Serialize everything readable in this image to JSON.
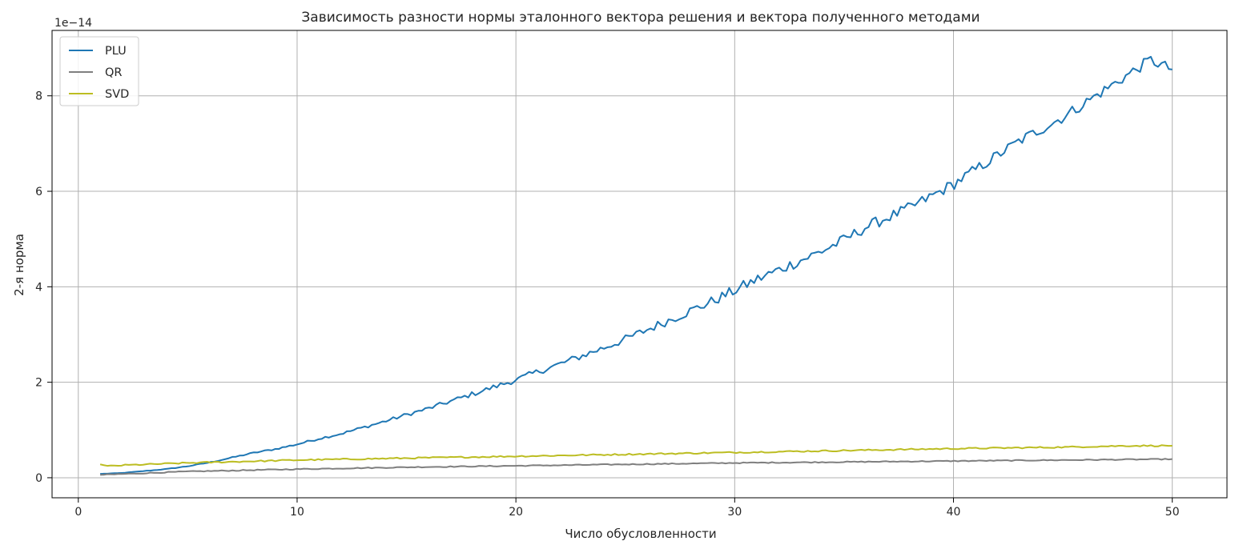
{
  "chart_data": {
    "type": "line",
    "title": "Зависимость разности нормы эталонного вектора решения и вектора полученного методами",
    "xlabel": "Число обусловленности",
    "ylabel": "2-я норма",
    "y_multiplier_label": "1e−14",
    "xlim": [
      -1.2,
      52.5
    ],
    "ylim": [
      -0.42,
      9.37
    ],
    "x_ticks": [
      0,
      10,
      20,
      30,
      40,
      50
    ],
    "x_tick_labels": [
      "0",
      "10",
      "20",
      "30",
      "40",
      "50"
    ],
    "y_ticks": [
      0,
      2,
      4,
      6,
      8
    ],
    "y_tick_labels": [
      "0",
      "2",
      "4",
      "6",
      "8"
    ],
    "grid": true,
    "legend_position": "top-left",
    "x_range": [
      1,
      50
    ],
    "series": [
      {
        "name": "PLU",
        "color": "#1f77b4",
        "x": [
          1,
          2,
          3,
          4,
          5,
          6,
          7,
          8,
          9,
          10,
          11,
          12,
          13,
          14,
          15,
          16,
          17,
          18,
          19,
          20,
          21,
          22,
          23,
          24,
          25,
          26,
          27,
          28,
          29,
          30,
          31,
          32,
          33,
          34,
          35,
          36,
          37,
          38,
          39,
          40,
          41,
          42,
          43,
          44,
          45,
          46,
          47,
          48,
          49,
          50
        ],
        "values": [
          0.08,
          0.1,
          0.14,
          0.18,
          0.24,
          0.32,
          0.42,
          0.52,
          0.6,
          0.7,
          0.82,
          0.92,
          1.05,
          1.18,
          1.32,
          1.45,
          1.6,
          1.75,
          1.9,
          2.05,
          2.22,
          2.38,
          2.55,
          2.72,
          2.9,
          3.1,
          3.3,
          3.5,
          3.7,
          3.92,
          4.15,
          4.35,
          4.55,
          4.75,
          4.98,
          5.25,
          5.45,
          5.65,
          5.9,
          6.15,
          6.45,
          6.75,
          7.05,
          7.3,
          7.55,
          7.85,
          8.15,
          8.45,
          8.75,
          8.55
        ]
      },
      {
        "name": "QR",
        "color": "#7f7f7f",
        "x": [
          1,
          5,
          10,
          15,
          20,
          25,
          30,
          35,
          40,
          45,
          50
        ],
        "values": [
          0.06,
          0.13,
          0.18,
          0.22,
          0.25,
          0.28,
          0.31,
          0.33,
          0.35,
          0.37,
          0.39
        ]
      },
      {
        "name": "SVD",
        "color": "#bcbd22",
        "x": [
          1,
          1.3,
          2,
          5,
          10,
          15,
          20,
          25,
          30,
          35,
          40,
          45,
          48,
          50
        ],
        "values": [
          0.28,
          0.24,
          0.26,
          0.31,
          0.37,
          0.41,
          0.45,
          0.49,
          0.53,
          0.57,
          0.61,
          0.64,
          0.67,
          0.67
        ]
      }
    ]
  }
}
